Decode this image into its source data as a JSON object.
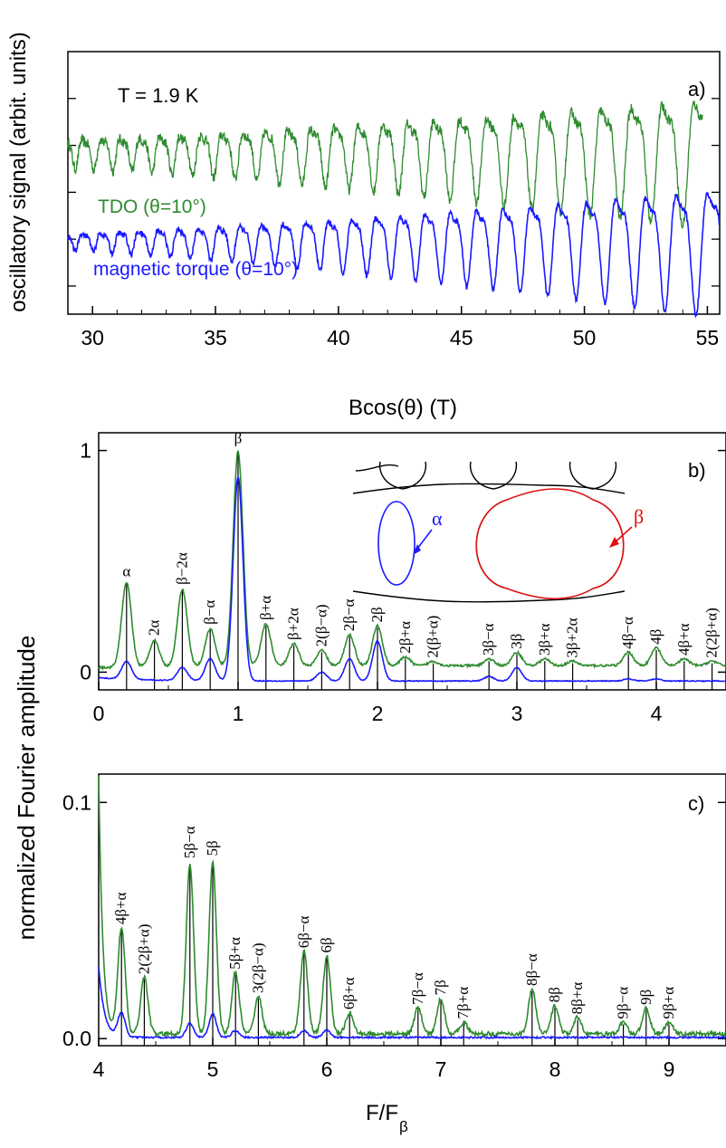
{
  "colors": {
    "green": "#2e8b2e",
    "blue": "#1a1aff",
    "red": "#e01010",
    "black": "#000000"
  },
  "shared_ylabel": "normalized Fourier amplitude",
  "chart_data": [
    {
      "id": "a",
      "type": "line",
      "panel_label": "a)",
      "temperature_label": "T = 1.9 K",
      "xlabel": "Bcos(θ) (T)",
      "ylabel": "oscillatory signal (arbit. units)",
      "xlim": [
        29,
        55.5
      ],
      "x_ticks": [
        "30",
        "35",
        "40",
        "45",
        "50",
        "55"
      ],
      "series": [
        {
          "name": "TDO (θ=10°)",
          "color": "#2e8b2e",
          "x_range": [
            29,
            54.8
          ],
          "baseline": 0.62,
          "period": 0.62,
          "amp_start": 0.05,
          "amp_end": 0.22,
          "noise": 0.04
        },
        {
          "name": "magnetic torque (θ=10°)",
          "color": "#1a1aff",
          "x_range": [
            29,
            55.5
          ],
          "baseline": 0.28,
          "period": 0.62,
          "amp_start": 0.03,
          "amp_end": 0.22,
          "noise": 0.02
        }
      ]
    },
    {
      "id": "b",
      "type": "line",
      "panel_label": "b)",
      "xlim": [
        0,
        4.5
      ],
      "ylim": [
        -0.08,
        1.08
      ],
      "x_ticks": [
        "0",
        "1",
        "2",
        "3",
        "4"
      ],
      "y_ticks": [
        "0",
        "1"
      ],
      "green_peaks": [
        [
          0.2,
          0.38
        ],
        [
          0.4,
          0.12
        ],
        [
          0.6,
          0.35
        ],
        [
          0.8,
          0.17
        ],
        [
          1.0,
          0.97
        ],
        [
          1.2,
          0.19
        ],
        [
          1.4,
          0.1
        ],
        [
          1.6,
          0.07
        ],
        [
          1.8,
          0.14
        ],
        [
          2.0,
          0.18
        ],
        [
          2.2,
          0.04
        ],
        [
          2.4,
          0.02
        ],
        [
          2.8,
          0.03
        ],
        [
          3.0,
          0.06
        ],
        [
          3.2,
          0.03
        ],
        [
          3.4,
          0.02
        ],
        [
          3.8,
          0.06
        ],
        [
          4.0,
          0.08
        ],
        [
          4.2,
          0.03
        ],
        [
          4.4,
          0.02
        ]
      ],
      "blue_peaks": [
        [
          0.2,
          0.08
        ],
        [
          0.6,
          0.06
        ],
        [
          0.8,
          0.1
        ],
        [
          1.0,
          0.92
        ],
        [
          1.6,
          0.04
        ],
        [
          1.8,
          0.1
        ],
        [
          2.0,
          0.18
        ],
        [
          2.8,
          0.02
        ],
        [
          3.0,
          0.06
        ],
        [
          3.8,
          0.01
        ],
        [
          4.0,
          0.01
        ]
      ],
      "peak_labels": [
        {
          "x": 0.2,
          "label": "α",
          "top": 0.4
        },
        {
          "x": 0.4,
          "label": "2α",
          "top": 0.14
        },
        {
          "x": 0.6,
          "label": "β−2α",
          "top": 0.37
        },
        {
          "x": 0.8,
          "label": "β−α",
          "top": 0.19
        },
        {
          "x": 1.0,
          "label": "β",
          "top": 1.0
        },
        {
          "x": 1.2,
          "label": "β+α",
          "top": 0.21
        },
        {
          "x": 1.4,
          "label": "β+2α",
          "top": 0.12
        },
        {
          "x": 1.6,
          "label": "2(β−α)",
          "top": 0.09
        },
        {
          "x": 1.8,
          "label": "2β−α",
          "top": 0.16
        },
        {
          "x": 2.0,
          "label": "2β",
          "top": 0.2
        },
        {
          "x": 2.2,
          "label": "2β+α",
          "top": 0.06
        },
        {
          "x": 2.4,
          "label": "2(β+α)",
          "top": 0.04
        },
        {
          "x": 2.8,
          "label": "3β−α",
          "top": 0.05
        },
        {
          "x": 3.0,
          "label": "3β",
          "top": 0.08
        },
        {
          "x": 3.2,
          "label": "3β+α",
          "top": 0.05
        },
        {
          "x": 3.4,
          "label": "3β+2α",
          "top": 0.04
        },
        {
          "x": 3.8,
          "label": "4β−α",
          "top": 0.08
        },
        {
          "x": 4.0,
          "label": "4β",
          "top": 0.1
        },
        {
          "x": 4.2,
          "label": "4β+α",
          "top": 0.05
        },
        {
          "x": 4.4,
          "label": "2(2β+α)",
          "top": 0.04
        }
      ],
      "inset": {
        "alpha_label": "α",
        "beta_label": "β"
      }
    },
    {
      "id": "c",
      "type": "line",
      "panel_label": "c)",
      "xlabel": "F/F",
      "xlabel_sub": "β",
      "xlim": [
        4,
        9.5
      ],
      "ylim": [
        -0.003,
        0.112
      ],
      "x_ticks": [
        "4",
        "5",
        "6",
        "7",
        "8",
        "9"
      ],
      "y_ticks": [
        "0.0",
        "0.1"
      ],
      "green_peaks": [
        [
          4.2,
          0.045
        ],
        [
          4.4,
          0.024
        ],
        [
          4.8,
          0.072
        ],
        [
          5.0,
          0.073
        ],
        [
          5.2,
          0.026
        ],
        [
          5.4,
          0.016
        ],
        [
          5.8,
          0.035
        ],
        [
          6.0,
          0.033
        ],
        [
          6.2,
          0.009
        ],
        [
          6.8,
          0.011
        ],
        [
          7.0,
          0.015
        ],
        [
          7.2,
          0.005
        ],
        [
          7.8,
          0.019
        ],
        [
          8.0,
          0.012
        ],
        [
          8.2,
          0.007
        ],
        [
          8.6,
          0.005
        ],
        [
          8.8,
          0.011
        ],
        [
          9.0,
          0.005
        ]
      ],
      "blue_peaks": [
        [
          4.2,
          0.01
        ],
        [
          4.8,
          0.006
        ],
        [
          5.0,
          0.01
        ],
        [
          5.2,
          0.003
        ],
        [
          5.8,
          0.003
        ],
        [
          6.0,
          0.003
        ]
      ],
      "peak_labels": [
        {
          "x": 4.2,
          "label": "4β+α",
          "top": 0.046
        },
        {
          "x": 4.4,
          "label": "2(2β+α)",
          "top": 0.025
        },
        {
          "x": 4.8,
          "label": "5β−α",
          "top": 0.074
        },
        {
          "x": 5.0,
          "label": "5β",
          "top": 0.075
        },
        {
          "x": 5.2,
          "label": "5β+α",
          "top": 0.027
        },
        {
          "x": 5.4,
          "label": "3(2β−α)",
          "top": 0.017
        },
        {
          "x": 5.8,
          "label": "6β−α",
          "top": 0.036
        },
        {
          "x": 6.0,
          "label": "6β",
          "top": 0.034
        },
        {
          "x": 6.2,
          "label": "6β+α",
          "top": 0.01
        },
        {
          "x": 6.8,
          "label": "7β−α",
          "top": 0.012
        },
        {
          "x": 7.0,
          "label": "7β",
          "top": 0.016
        },
        {
          "x": 7.2,
          "label": "7β+α",
          "top": 0.006
        },
        {
          "x": 7.8,
          "label": "8β−α",
          "top": 0.02
        },
        {
          "x": 8.0,
          "label": "8β",
          "top": 0.013
        },
        {
          "x": 8.2,
          "label": "8β+α",
          "top": 0.008
        },
        {
          "x": 8.6,
          "label": "9β−α",
          "top": 0.006
        },
        {
          "x": 8.8,
          "label": "9β",
          "top": 0.012
        },
        {
          "x": 9.0,
          "label": "9β+α",
          "top": 0.006
        }
      ]
    }
  ]
}
